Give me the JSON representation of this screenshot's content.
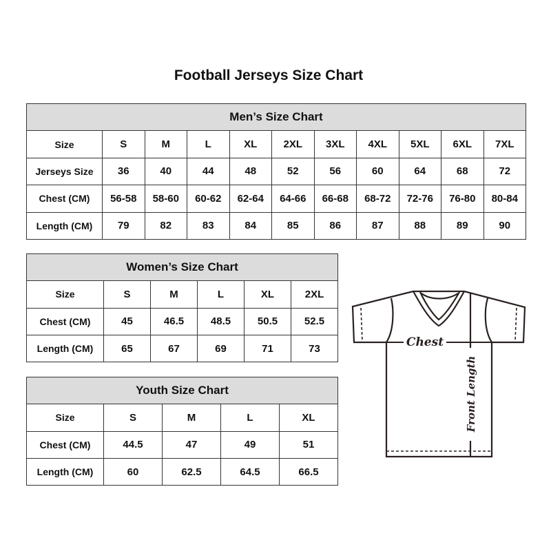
{
  "title": "Football Jerseys Size Chart",
  "mens": {
    "heading": "Men’s Size Chart",
    "rows": [
      {
        "label": "Size",
        "values": [
          "S",
          "M",
          "L",
          "XL",
          "2XL",
          "3XL",
          "4XL",
          "5XL",
          "6XL",
          "7XL"
        ]
      },
      {
        "label": "Jerseys Size",
        "values": [
          "36",
          "40",
          "44",
          "48",
          "52",
          "56",
          "60",
          "64",
          "68",
          "72"
        ]
      },
      {
        "label": "Chest (CM)",
        "values": [
          "56-58",
          "58-60",
          "60-62",
          "62-64",
          "64-66",
          "66-68",
          "68-72",
          "72-76",
          "76-80",
          "80-84"
        ]
      },
      {
        "label": "Length (CM)",
        "values": [
          "79",
          "82",
          "83",
          "84",
          "85",
          "86",
          "87",
          "88",
          "89",
          "90"
        ]
      }
    ]
  },
  "womens": {
    "heading": "Women’s Size Chart",
    "rows": [
      {
        "label": "Size",
        "values": [
          "S",
          "M",
          "L",
          "XL",
          "2XL"
        ]
      },
      {
        "label": "Chest (CM)",
        "values": [
          "45",
          "46.5",
          "48.5",
          "50.5",
          "52.5"
        ]
      },
      {
        "label": "Length (CM)",
        "values": [
          "65",
          "67",
          "69",
          "71",
          "73"
        ]
      }
    ]
  },
  "youth": {
    "heading": "Youth Size Chart",
    "rows": [
      {
        "label": "Size",
        "values": [
          "S",
          "M",
          "L",
          "XL"
        ]
      },
      {
        "label": "Chest (CM)",
        "values": [
          "44.5",
          "47",
          "49",
          "51"
        ]
      },
      {
        "label": "Length (CM)",
        "values": [
          "60",
          "62.5",
          "64.5",
          "66.5"
        ]
      }
    ]
  },
  "diagram": {
    "chest_label": "Chest",
    "length_label": "Front Length"
  }
}
